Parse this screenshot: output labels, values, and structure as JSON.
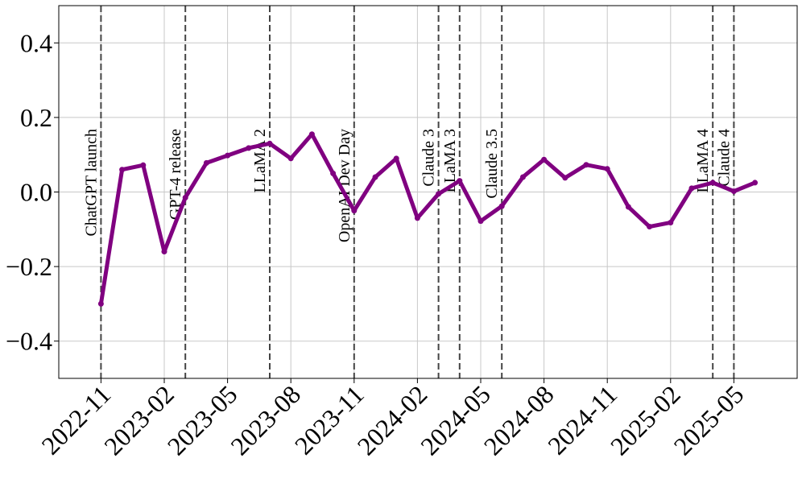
{
  "chart_data": {
    "type": "line",
    "x": [
      "2022-11",
      "2022-12",
      "2023-01",
      "2023-02",
      "2023-03",
      "2023-04",
      "2023-05",
      "2023-06",
      "2023-07",
      "2023-08",
      "2023-09",
      "2023-10",
      "2023-11",
      "2023-12",
      "2024-01",
      "2024-02",
      "2024-03",
      "2024-04",
      "2024-05",
      "2024-06",
      "2024-07",
      "2024-08",
      "2024-09",
      "2024-10",
      "2024-11",
      "2024-12",
      "2025-01",
      "2025-02",
      "2025-03",
      "2025-04",
      "2025-05",
      "2025-06"
    ],
    "series": [
      {
        "color": "#800080",
        "values": [
          -0.3,
          0.06,
          0.072,
          -0.16,
          -0.015,
          0.078,
          0.098,
          0.118,
          0.13,
          0.09,
          0.155,
          0.05,
          -0.05,
          0.04,
          0.09,
          -0.07,
          -0.005,
          0.03,
          -0.078,
          -0.038,
          0.04,
          0.087,
          0.038,
          0.073,
          0.062,
          -0.04,
          -0.093,
          -0.082,
          0.01,
          0.025,
          0.002,
          0.025
        ]
      }
    ],
    "xlim": [
      "2022-09",
      "2025-08"
    ],
    "xticks": [
      "2022-11",
      "2023-02",
      "2023-05",
      "2023-08",
      "2023-11",
      "2024-02",
      "2024-05",
      "2024-08",
      "2024-11",
      "2025-02",
      "2025-05"
    ],
    "ylim": [
      -0.5,
      0.5
    ],
    "yticks": [
      {
        "value": -0.4,
        "label": "−0.4"
      },
      {
        "value": -0.2,
        "label": "−0.2"
      },
      {
        "value": 0,
        "label": "0.0"
      },
      0.2,
      0.4
    ],
    "grid": true,
    "annotations": [
      {
        "x": "2022-11",
        "label": "ChatGPT launch"
      },
      {
        "x": "2023-03",
        "label": "GPT-4 release"
      },
      {
        "x": "2023-07",
        "label": "LLaMA 2"
      },
      {
        "x": "2023-11",
        "label": "OpenAI Dev Day"
      },
      {
        "x": "2024-03",
        "label": "Claude 3"
      },
      {
        "x": "2024-04",
        "label": "LLaMA 3"
      },
      {
        "x": "2024-06",
        "label": "Claude 3.5"
      },
      {
        "x": "2025-04",
        "label": "LLaMA 4"
      },
      {
        "x": "2025-05",
        "label": "Claude 4"
      }
    ]
  }
}
